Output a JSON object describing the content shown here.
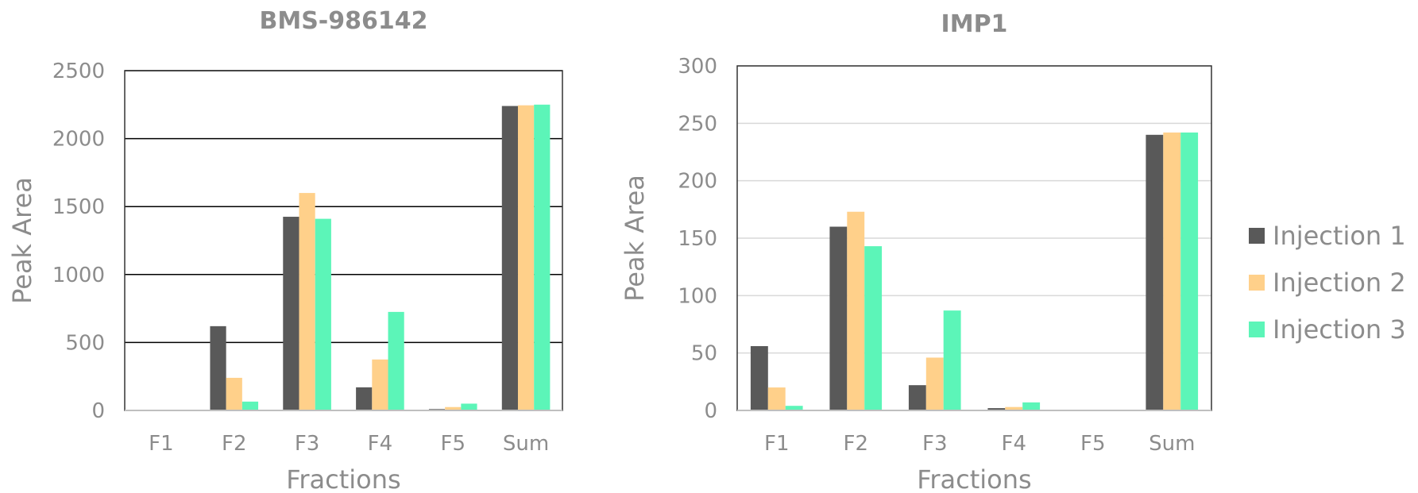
{
  "chart_data": [
    {
      "type": "bar",
      "title": "BMS-986142",
      "xlabel": "Fractions",
      "ylabel": "Peak Area",
      "categories": [
        "F1",
        "F2",
        "F3",
        "F4",
        "F5",
        "Sum"
      ],
      "ylim": [
        0,
        2500
      ],
      "yticks": [
        0,
        500,
        1000,
        1500,
        2000,
        2500
      ],
      "grid": true,
      "series": [
        {
          "name": "Injection 1",
          "color": "#595959",
          "values": [
            5,
            620,
            1425,
            170,
            10,
            2240
          ]
        },
        {
          "name": "Injection 2",
          "color": "#ffd08a",
          "values": [
            0,
            240,
            1600,
            375,
            25,
            2245
          ]
        },
        {
          "name": "Injection 3",
          "color": "#5cf5b8",
          "values": [
            0,
            65,
            1410,
            725,
            50,
            2250
          ]
        }
      ]
    },
    {
      "type": "bar",
      "title": "IMP1",
      "xlabel": "Fractions",
      "ylabel": "Peak Area",
      "categories": [
        "F1",
        "F2",
        "F3",
        "F4",
        "F5",
        "Sum"
      ],
      "ylim": [
        0,
        300
      ],
      "yticks": [
        0,
        50,
        100,
        150,
        200,
        250,
        300
      ],
      "grid": true,
      "series": [
        {
          "name": "Injection 1",
          "color": "#595959",
          "values": [
            56,
            160,
            22,
            2,
            0,
            240
          ]
        },
        {
          "name": "Injection 2",
          "color": "#ffd08a",
          "values": [
            20,
            173,
            46,
            3,
            0,
            242
          ]
        },
        {
          "name": "Injection 3",
          "color": "#5cf5b8",
          "values": [
            4,
            143,
            87,
            7,
            0,
            242
          ]
        }
      ]
    }
  ],
  "legend": {
    "position": "right",
    "items": [
      {
        "label": "Injection 1",
        "color": "#595959"
      },
      {
        "label": "Injection 2",
        "color": "#ffd08a"
      },
      {
        "label": "Injection 3",
        "color": "#5cf5b8"
      }
    ]
  }
}
